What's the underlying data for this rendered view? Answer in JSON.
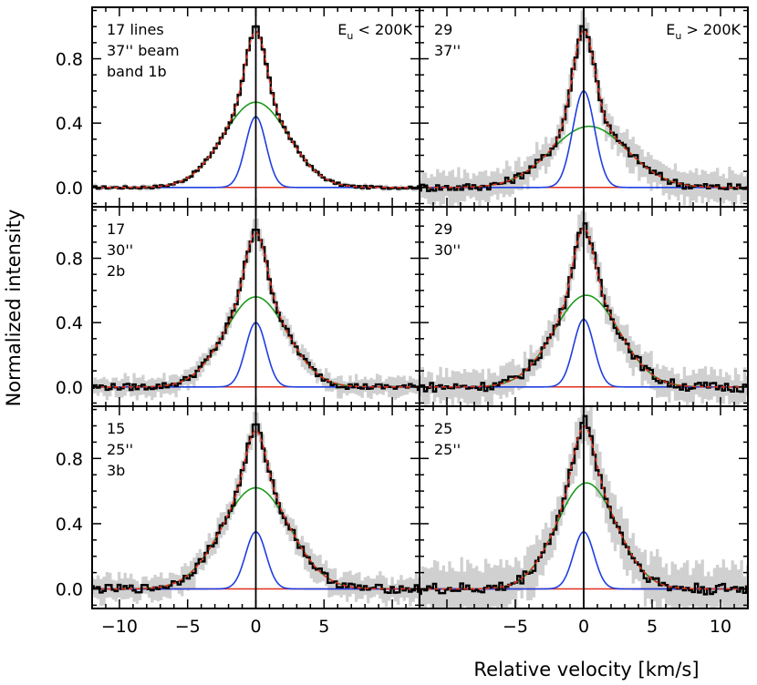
{
  "chart_data": {
    "type": "line",
    "layout": "3x2 panel grid sharing axes",
    "xlabel": "Relative velocity [km/s]",
    "ylabel": "Normalized intensity",
    "xlim": [
      -12,
      12
    ],
    "ylim": [
      -0.12,
      1.12
    ],
    "y_ticks": [
      0.0,
      0.4,
      0.8
    ],
    "y_tick_labels": [
      "0.0",
      "0.4",
      "0.8"
    ],
    "x_ticks_left_column": [
      -10,
      -5,
      0,
      5
    ],
    "x_tick_labels_left_column": [
      "−10",
      "−5",
      "0",
      "5"
    ],
    "x_ticks_right_column": [
      -5,
      0,
      5,
      10
    ],
    "x_tick_labels_right_column": [
      "−5",
      "0",
      "5",
      "10"
    ],
    "grid": false,
    "colors": {
      "observed": "#000000",
      "uncertainty_band": "#d0d0d0",
      "narrow_component": "#1f3fe0",
      "broad_component": "#1f9a1f",
      "total_fit": "#e0301e",
      "zero_line": "#000000"
    },
    "column_headers": [
      {
        "main": "E",
        "sub": "u",
        "rest": " < 200K"
      },
      {
        "main": "E",
        "sub": "u",
        "rest": " > 200K"
      }
    ],
    "panels": [
      {
        "id": "p1",
        "row": 0,
        "col": 0,
        "lines": [
          "17 lines",
          "37'' beam",
          "band 1b"
        ],
        "narrow": {
          "amp": 0.44,
          "center": 0.0,
          "sigma": 0.75
        },
        "broad": {
          "amp": 0.53,
          "center": 0.0,
          "sigma": 2.4
        },
        "noise": 0.008,
        "band_width": 0.015
      },
      {
        "id": "p2",
        "row": 0,
        "col": 1,
        "lines": [
          "29",
          "37''"
        ],
        "narrow": {
          "amp": 0.6,
          "center": 0.0,
          "sigma": 0.8
        },
        "broad": {
          "amp": 0.38,
          "center": 0.4,
          "sigma": 2.8
        },
        "noise": 0.025,
        "band_width": 0.1
      },
      {
        "id": "p3",
        "row": 1,
        "col": 0,
        "lines": [
          "17",
          "30''",
          "2b"
        ],
        "narrow": {
          "amp": 0.4,
          "center": 0.0,
          "sigma": 0.75
        },
        "broad": {
          "amp": 0.56,
          "center": 0.0,
          "sigma": 2.3
        },
        "noise": 0.02,
        "band_width": 0.06
      },
      {
        "id": "p4",
        "row": 1,
        "col": 1,
        "lines": [
          "29",
          "30''"
        ],
        "narrow": {
          "amp": 0.42,
          "center": 0.0,
          "sigma": 0.75
        },
        "broad": {
          "amp": 0.57,
          "center": 0.2,
          "sigma": 2.4
        },
        "noise": 0.03,
        "band_width": 0.1
      },
      {
        "id": "p5",
        "row": 2,
        "col": 0,
        "lines": [
          "15",
          "25''",
          "3b"
        ],
        "narrow": {
          "amp": 0.35,
          "center": 0.0,
          "sigma": 0.75
        },
        "broad": {
          "amp": 0.62,
          "center": 0.0,
          "sigma": 2.5
        },
        "noise": 0.025,
        "band_width": 0.08
      },
      {
        "id": "p6",
        "row": 2,
        "col": 1,
        "lines": [
          "25",
          "25''"
        ],
        "narrow": {
          "amp": 0.35,
          "center": 0.0,
          "sigma": 0.75
        },
        "broad": {
          "amp": 0.65,
          "center": 0.2,
          "sigma": 2.2
        },
        "noise": 0.035,
        "band_width": 0.15
      }
    ]
  }
}
